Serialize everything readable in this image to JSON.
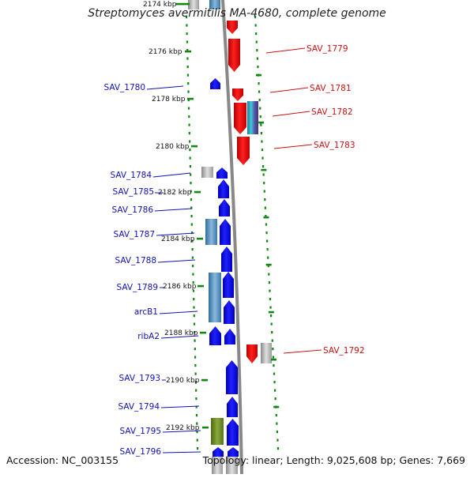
{
  "title": "Streptomyces avermitilis MA-4680, complete genome",
  "footer": {
    "accession": "Accession: NC_003155",
    "summary": "Topology: linear; Length: 9,025,608 bp; Genes: 7,669"
  },
  "colors": {
    "forward": "#ee1111",
    "reverse": "#1111ee",
    "backbone": "#888888",
    "tick": "#118811",
    "label_forward": "#cc1111",
    "label_reverse": "#1111bb"
  },
  "ticks": [
    "2174 kbp",
    "2176 kbp",
    "2178 kbp",
    "2180 kbp",
    "2182 kbp",
    "2184 kbp",
    "2186 kbp",
    "2188 kbp",
    "2190 kbp",
    "2192 kbp"
  ],
  "genes_forward": [
    "SAV_1779",
    "SAV_1781",
    "SAV_1782",
    "SAV_1783",
    "SAV_1792"
  ],
  "genes_reverse": [
    "SAV_1780",
    "SAV_1784",
    "SAV_1785",
    "SAV_1786",
    "SAV_1787",
    "SAV_1788",
    "SAV_1789",
    "arcB1",
    "ribA2",
    "SAV_1793",
    "SAV_1794",
    "SAV_1795",
    "SAV_1796"
  ]
}
